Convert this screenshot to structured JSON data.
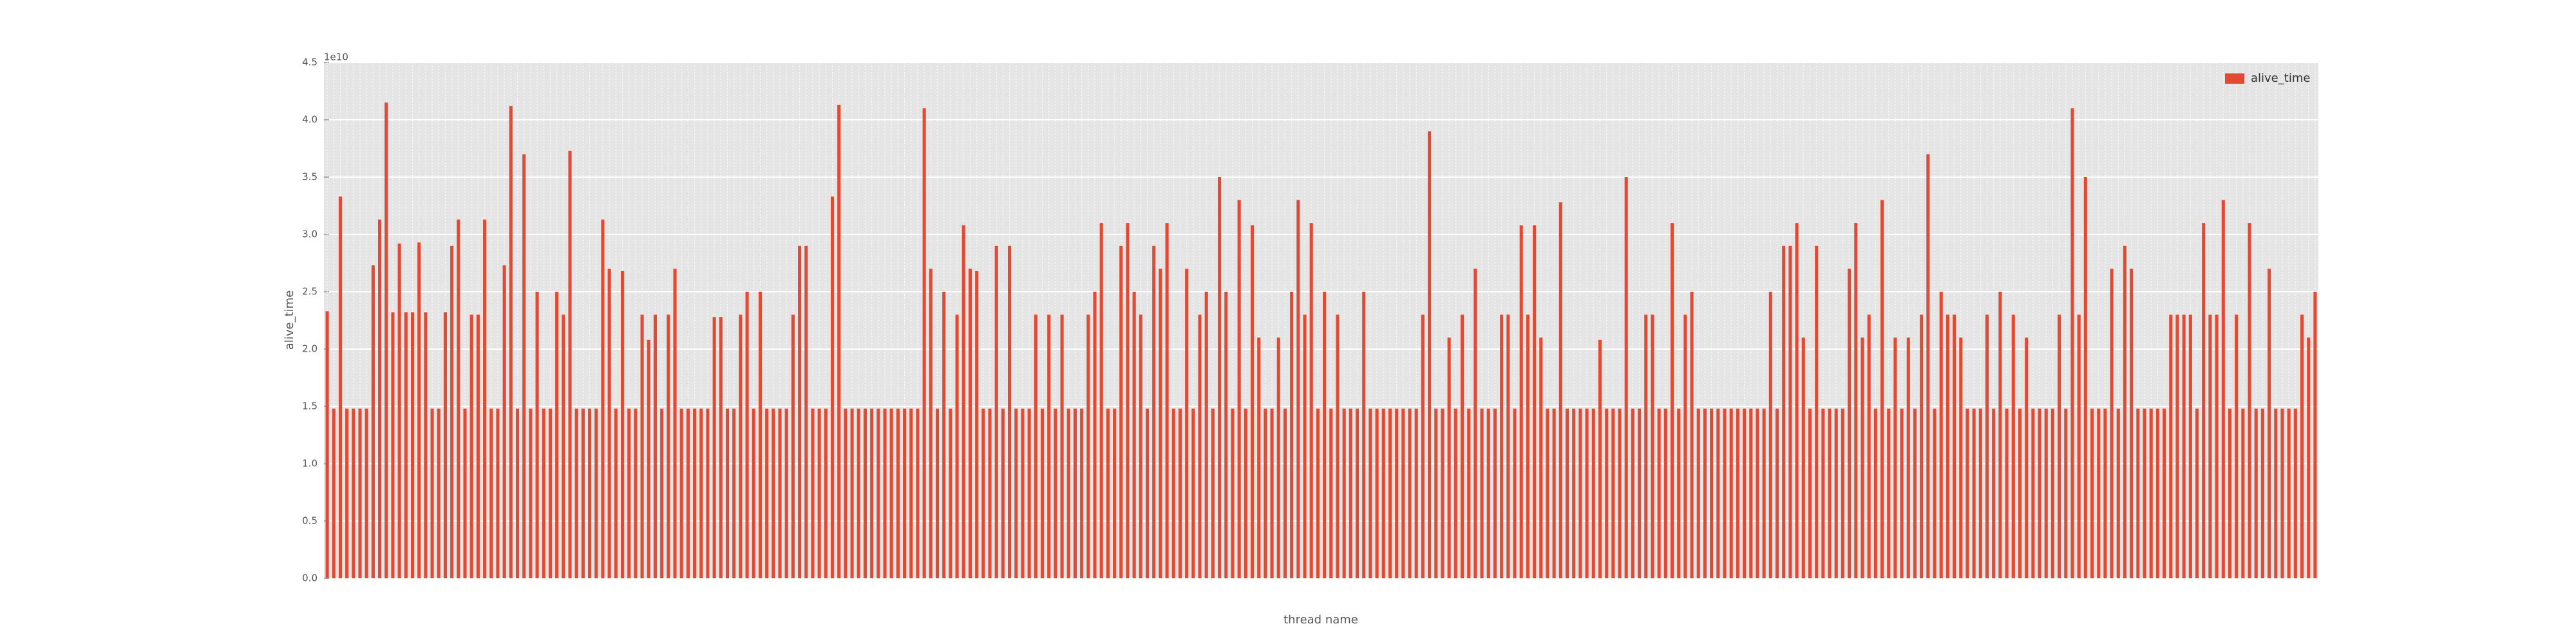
{
  "chart_data": {
    "type": "bar",
    "x_label": "thread name",
    "y_label": "alive_time",
    "y_offset_label": "1e10",
    "series": [
      {
        "name": "alive_time",
        "color": "#e24a33",
        "values": [
          2.33,
          1.48,
          3.33,
          1.48,
          1.48,
          1.48,
          1.48,
          2.73,
          3.13,
          4.15,
          2.32,
          2.92,
          2.32,
          2.32,
          2.93,
          2.32,
          1.48,
          1.48,
          2.32,
          2.9,
          3.13,
          1.48,
          2.3,
          2.3,
          3.13,
          1.48,
          1.48,
          2.73,
          4.12,
          1.48,
          3.7,
          1.48,
          2.5,
          1.48,
          1.48,
          2.5,
          2.3,
          3.73,
          1.48,
          1.48,
          1.48,
          1.48,
          3.13,
          2.7,
          1.48,
          2.68,
          1.48,
          1.48,
          2.3,
          2.08,
          2.3,
          1.48,
          2.3,
          2.7,
          1.48,
          1.48,
          1.48,
          1.48,
          1.48,
          2.28,
          2.28,
          1.48,
          1.48,
          2.3,
          2.5,
          1.48,
          2.5,
          1.48,
          1.48,
          1.48,
          1.48,
          2.3,
          2.9,
          2.9,
          1.48,
          1.48,
          1.48,
          3.33,
          4.13,
          1.48,
          1.48,
          1.48,
          1.48,
          1.48,
          1.48,
          1.48,
          1.48,
          1.48,
          1.48,
          1.48,
          1.48,
          4.1,
          2.7,
          1.48,
          2.5,
          1.48,
          2.3,
          3.08,
          2.7,
          2.68,
          1.48,
          1.48,
          2.9,
          1.48,
          2.9,
          1.48,
          1.48,
          1.48,
          2.3,
          1.48,
          2.3,
          1.48,
          2.3,
          1.48,
          1.48,
          1.48,
          2.3,
          2.5,
          3.1,
          1.48,
          1.48,
          2.9,
          3.1,
          2.5,
          2.3,
          1.48,
          2.9,
          2.7,
          3.1,
          1.48,
          1.48,
          2.7,
          1.48,
          2.3,
          2.5,
          1.48,
          3.5,
          2.5,
          1.48,
          3.3,
          1.48,
          3.08,
          2.1,
          1.48,
          1.48,
          2.1,
          1.48,
          2.5,
          3.3,
          2.3,
          3.1,
          1.48,
          2.5,
          1.48,
          2.3,
          1.48,
          1.48,
          1.48,
          2.5,
          1.48,
          1.48,
          1.48,
          1.48,
          1.48,
          1.48,
          1.48,
          1.48,
          2.3,
          3.9,
          1.48,
          1.48,
          2.1,
          1.48,
          2.3,
          1.48,
          2.7,
          1.48,
          1.48,
          1.48,
          2.3,
          2.3,
          1.48,
          3.08,
          2.3,
          3.08,
          2.1,
          1.48,
          1.48,
          3.28,
          1.48,
          1.48,
          1.48,
          1.48,
          1.48,
          2.08,
          1.48,
          1.48,
          1.48,
          3.5,
          1.48,
          1.48,
          2.3,
          2.3,
          1.48,
          1.48,
          3.1,
          1.48,
          2.3,
          2.5,
          1.48,
          1.48,
          1.48,
          1.48,
          1.48,
          1.48,
          1.48,
          1.48,
          1.48,
          1.48,
          1.48,
          2.5,
          1.48,
          2.9,
          2.9,
          3.1,
          2.1,
          1.48,
          2.9,
          1.48,
          1.48,
          1.48,
          1.48,
          2.7,
          3.1,
          2.1,
          2.3,
          1.48,
          3.3,
          1.48,
          2.1,
          1.48,
          2.1,
          1.48,
          2.3,
          3.7,
          1.48,
          2.5,
          2.3,
          2.3,
          2.1,
          1.48,
          1.48,
          1.48,
          2.3,
          1.48,
          2.5,
          1.48,
          2.3,
          1.48,
          2.1,
          1.48,
          1.48,
          1.48,
          1.48,
          2.3,
          1.48,
          4.1,
          2.3,
          3.5,
          1.48,
          1.48,
          1.48,
          2.7,
          1.48,
          2.9,
          2.7,
          1.48,
          1.48,
          1.48,
          1.48,
          1.48,
          2.3,
          2.3,
          2.3,
          2.3,
          1.48,
          3.1,
          2.3,
          2.3,
          3.3,
          1.48,
          2.3,
          1.48,
          3.1,
          1.48,
          1.48,
          2.7,
          1.48,
          1.48,
          1.48,
          1.48,
          2.3,
          2.1,
          2.5
        ]
      }
    ],
    "categories": [
      null,
      null,
      null,
      null,
      null,
      null,
      null,
      null,
      null,
      null,
      null,
      null,
      null,
      null,
      null,
      null,
      null,
      null,
      null,
      null,
      null,
      null,
      null,
      null,
      null,
      null,
      null,
      null,
      null,
      null,
      null,
      null,
      null,
      null,
      null,
      null,
      null,
      null,
      null,
      null,
      null,
      null,
      null,
      null,
      null,
      null,
      null,
      null,
      null,
      null,
      null,
      null,
      null,
      null,
      null,
      null,
      null,
      null,
      null,
      null,
      null,
      null,
      null,
      null,
      null,
      null,
      null,
      null,
      null,
      null,
      null,
      null,
      null,
      null,
      null,
      null,
      null,
      null,
      null,
      null,
      null,
      null,
      null,
      null,
      null,
      null,
      null,
      null,
      null,
      null,
      null,
      null,
      null,
      null,
      null,
      null,
      null,
      null,
      null,
      null,
      null,
      null,
      null,
      null,
      null,
      null,
      null,
      null,
      null,
      null,
      null,
      null,
      null,
      null,
      null,
      null,
      null,
      null,
      null,
      null,
      null,
      null,
      null,
      null,
      null,
      null,
      null,
      null,
      null,
      null,
      null,
      null,
      null,
      null,
      null,
      null,
      null,
      null,
      null,
      null,
      null,
      null,
      null,
      null,
      null,
      null,
      null,
      null,
      null,
      null,
      null,
      null,
      null,
      null,
      null,
      null,
      null,
      null,
      null,
      null,
      null,
      null,
      null,
      null,
      null,
      null,
      null,
      null,
      null,
      null,
      null,
      null,
      null,
      null,
      null,
      null,
      null,
      null,
      null,
      null,
      null,
      null,
      null,
      null,
      null,
      null,
      null,
      null,
      null,
      null,
      null,
      null,
      null,
      null,
      null,
      null,
      null,
      null,
      null,
      null,
      null,
      null,
      null,
      null,
      null,
      null,
      null,
      null,
      null,
      null,
      null,
      null,
      null,
      null,
      null,
      null,
      null,
      null,
      null,
      null,
      null,
      null,
      null,
      null,
      null,
      null,
      null,
      null,
      null,
      null,
      null,
      null,
      null,
      null,
      null,
      null,
      null,
      null,
      null,
      null,
      null,
      null,
      null,
      null,
      null,
      null,
      null,
      null,
      null,
      null,
      null,
      null,
      null,
      null,
      null,
      null,
      null,
      null,
      null,
      null,
      null,
      null,
      null,
      null,
      null,
      null,
      null,
      null,
      null,
      null,
      null,
      null,
      null,
      null,
      null,
      null,
      null,
      null,
      null,
      null,
      null,
      null,
      null,
      null,
      null,
      null,
      null,
      null,
      null,
      null,
      null,
      null,
      null,
      null,
      null,
      null,
      null,
      null,
      null,
      null,
      null,
      null,
      null,
      null
    ],
    "ylim": [
      0,
      4.5
    ],
    "yticks": [
      {
        "value": 0,
        "label": "0.0"
      },
      0.5,
      {
        "value": 1,
        "label": "1.0"
      },
      1.5,
      {
        "value": 2,
        "label": "2.0"
      },
      2.5,
      {
        "value": 3,
        "label": "3.0"
      },
      3.5,
      {
        "value": 4,
        "label": "4.0"
      },
      4.5
    ],
    "grid": true,
    "legend": "upper right"
  }
}
